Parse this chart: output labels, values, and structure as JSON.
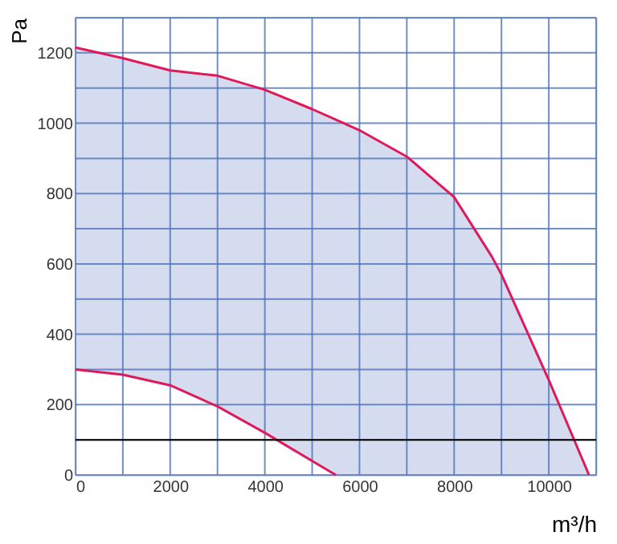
{
  "chart_data": {
    "type": "line",
    "xlabel": "m³/h",
    "ylabel": "Pa",
    "xlim": [
      0,
      11000
    ],
    "ylim": [
      0,
      1300
    ],
    "xticks": [
      0,
      {
        "value": 1000,
        "label": null
      },
      2000,
      {
        "value": 3000,
        "label": null
      },
      4000,
      {
        "value": 5000,
        "label": null
      },
      6000,
      {
        "value": 7000,
        "label": null
      },
      8000,
      {
        "value": 9000,
        "label": null
      },
      10000,
      {
        "value": 11000,
        "label": null
      }
    ],
    "yticks": [
      0,
      {
        "value": 100,
        "label": null
      },
      200,
      {
        "value": 300,
        "label": null
      },
      400,
      {
        "value": 500,
        "label": null
      },
      600,
      {
        "value": 700,
        "label": null
      },
      800,
      {
        "value": 900,
        "label": null
      },
      1000,
      {
        "value": 1100,
        "label": null
      },
      1200,
      {
        "value": 1300,
        "label": null
      }
    ],
    "grid": true,
    "marker": "none",
    "line_style": "solid",
    "series": [
      {
        "color": "#e0195a",
        "x": [
          0,
          1000,
          2000,
          3000,
          4000,
          5000,
          5500,
          6000,
          7000,
          8000,
          8800,
          9000,
          10000,
          10850
        ],
        "values": [
          1215,
          1185,
          1150,
          1135,
          1095,
          1040,
          1010,
          980,
          905,
          790,
          620,
          570,
          270,
          0
        ],
        "lower": [
          300,
          285,
          255,
          195,
          120,
          40,
          0,
          0,
          0,
          0,
          0,
          0,
          0,
          0
        ],
        "upper": [
          1215,
          1185,
          1150,
          1135,
          1095,
          1040,
          1010,
          980,
          905,
          790,
          620,
          570,
          270,
          0
        ]
      },
      {
        "color": "#e0195a",
        "x": [
          0,
          1000,
          2000,
          3000,
          4000,
          5000,
          5500
        ],
        "values": [
          300,
          285,
          255,
          195,
          120,
          40,
          0
        ]
      }
    ],
    "ref_lines": [
      {
        "axis": "y",
        "value": 100,
        "color": "#000000"
      }
    ]
  }
}
